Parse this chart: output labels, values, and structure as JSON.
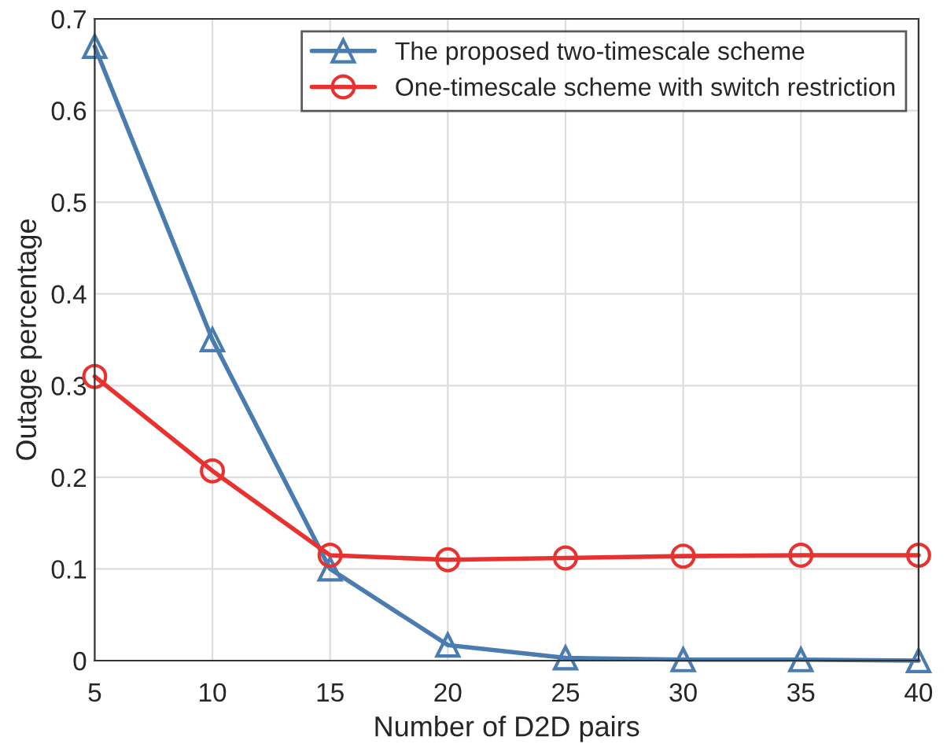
{
  "chart_data": {
    "type": "line",
    "xlabel": "Number of D2D pairs",
    "ylabel": "Outage percentage",
    "x": [
      5,
      10,
      15,
      20,
      25,
      30,
      35,
      40
    ],
    "series": [
      {
        "name": "The proposed two-timescale scheme",
        "color": "#4a7cb0",
        "marker": "triangle",
        "values": [
          0.67,
          0.35,
          0.1,
          0.017,
          0.003,
          0.001,
          0.001,
          0.0
        ]
      },
      {
        "name": "One-timescale scheme with switch restriction",
        "color": "#e8322f",
        "marker": "circle",
        "values": [
          0.31,
          0.207,
          0.115,
          0.11,
          0.112,
          0.114,
          0.115,
          0.115
        ]
      }
    ],
    "xlim": [
      5,
      40
    ],
    "xticks": [
      5,
      10,
      15,
      20,
      25,
      30,
      35,
      40
    ],
    "ylim": [
      0,
      0.7
    ],
    "yticks": [
      0,
      0.1,
      0.2,
      0.3,
      0.4,
      0.5,
      0.6,
      0.7
    ],
    "grid": true,
    "legend": "top right",
    "line_style": "solid"
  }
}
